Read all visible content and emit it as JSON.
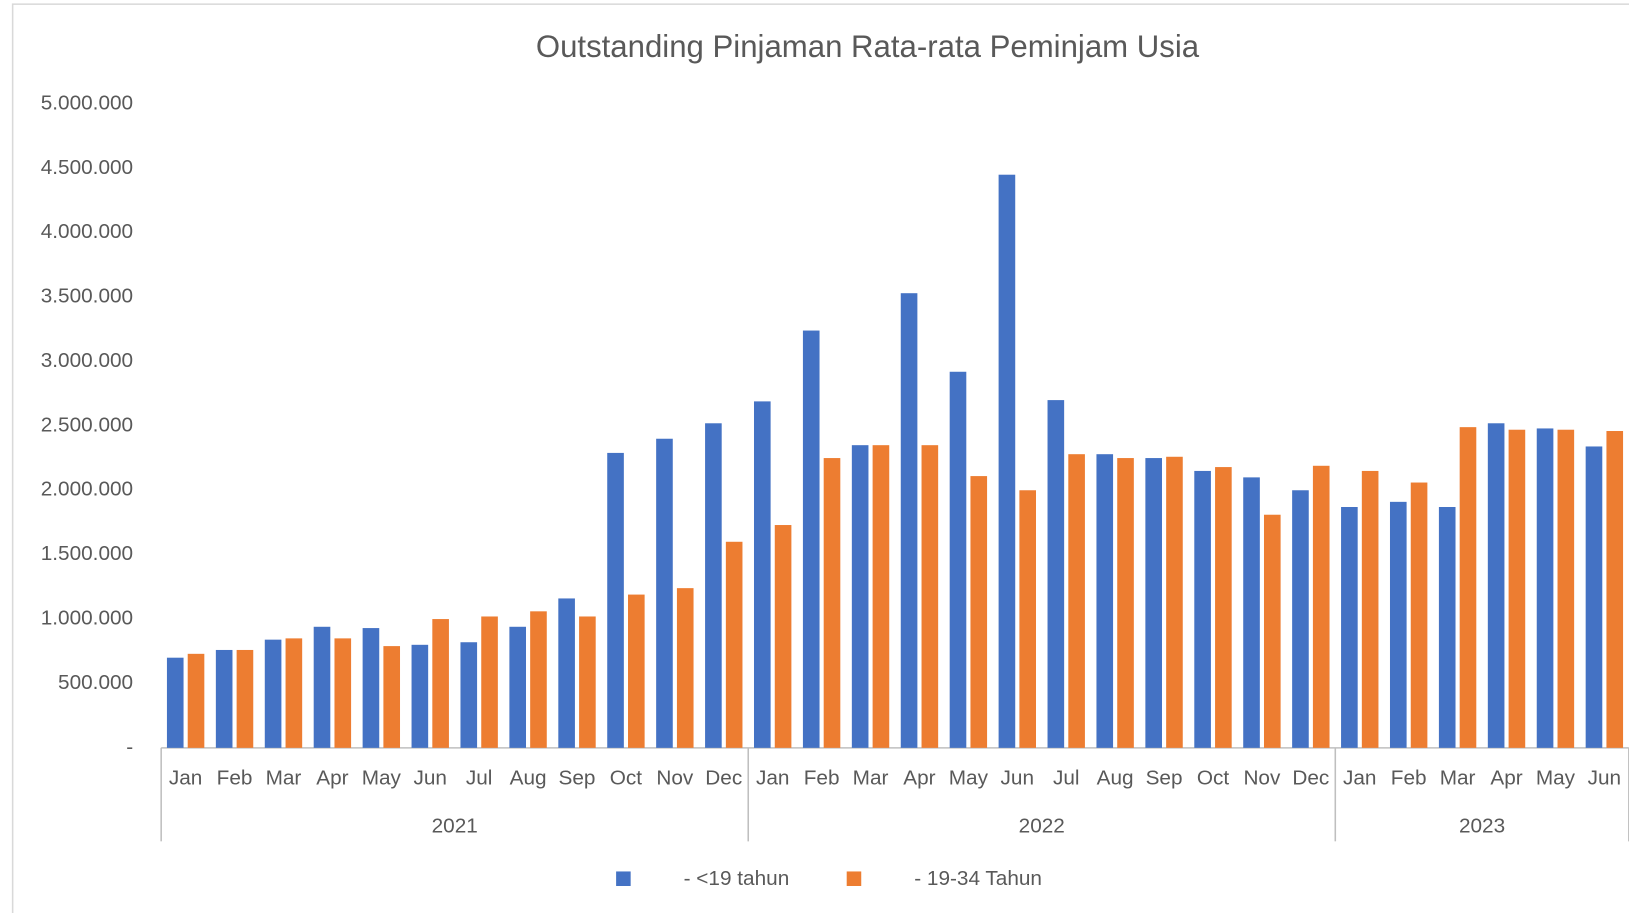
{
  "chart_data": {
    "type": "bar",
    "title": "Outstanding Pinjaman Rata-rata Peminjam Usia",
    "groups": [
      {
        "label": "2021",
        "categories": [
          "Jan",
          "Feb",
          "Mar",
          "Apr",
          "May",
          "Jun",
          "Jul",
          "Aug",
          "Sep",
          "Oct",
          "Nov",
          "Dec"
        ]
      },
      {
        "label": "2022",
        "categories": [
          "Jan",
          "Feb",
          "Mar",
          "Apr",
          "May",
          "Jun",
          "Jul",
          "Aug",
          "Sep",
          "Oct",
          "Nov",
          "Dec"
        ]
      },
      {
        "label": "2023",
        "categories": [
          "Jan",
          "Feb",
          "Mar",
          "Apr",
          "May",
          "Jun"
        ]
      }
    ],
    "series": [
      {
        "name": "- <19 tahun",
        "color": "#4472c4",
        "values": [
          700000,
          760000,
          840000,
          940000,
          930000,
          800000,
          820000,
          940000,
          1160000,
          2290000,
          2400000,
          2520000,
          2690000,
          3240000,
          2350000,
          3530000,
          2920000,
          4450000,
          2700000,
          2280000,
          2250000,
          2150000,
          2100000,
          2000000,
          1870000,
          1910000,
          1870000,
          2520000,
          2480000,
          2340000
        ]
      },
      {
        "name": "- 19-34 Tahun",
        "color": "#ed7d31",
        "values": [
          730000,
          760000,
          850000,
          850000,
          790000,
          1000000,
          1020000,
          1060000,
          1020000,
          1190000,
          1240000,
          1600000,
          1730000,
          2250000,
          2350000,
          2350000,
          2110000,
          2000000,
          2280000,
          2250000,
          2260000,
          2180000,
          1810000,
          2190000,
          2150000,
          2060000,
          2490000,
          2470000,
          2470000,
          2460000
        ]
      }
    ],
    "ylim": [
      0,
      5000000
    ],
    "yticks": [
      {
        "value": 0,
        "label": "-"
      },
      {
        "value": 500000,
        "label": "500.000"
      },
      {
        "value": 1000000,
        "label": "1.000.000"
      },
      {
        "value": 1500000,
        "label": "1.500.000"
      },
      {
        "value": 2000000,
        "label": "2.000.000"
      },
      {
        "value": 2500000,
        "label": "2.500.000"
      },
      {
        "value": 3000000,
        "label": "3.000.000"
      },
      {
        "value": 3500000,
        "label": "3.500.000"
      },
      {
        "value": 4000000,
        "label": "4.000.000"
      },
      {
        "value": 4500000,
        "label": "4.500.000"
      },
      {
        "value": 5000000,
        "label": "5.000.000"
      }
    ],
    "grid": false,
    "legend": "bottom"
  }
}
